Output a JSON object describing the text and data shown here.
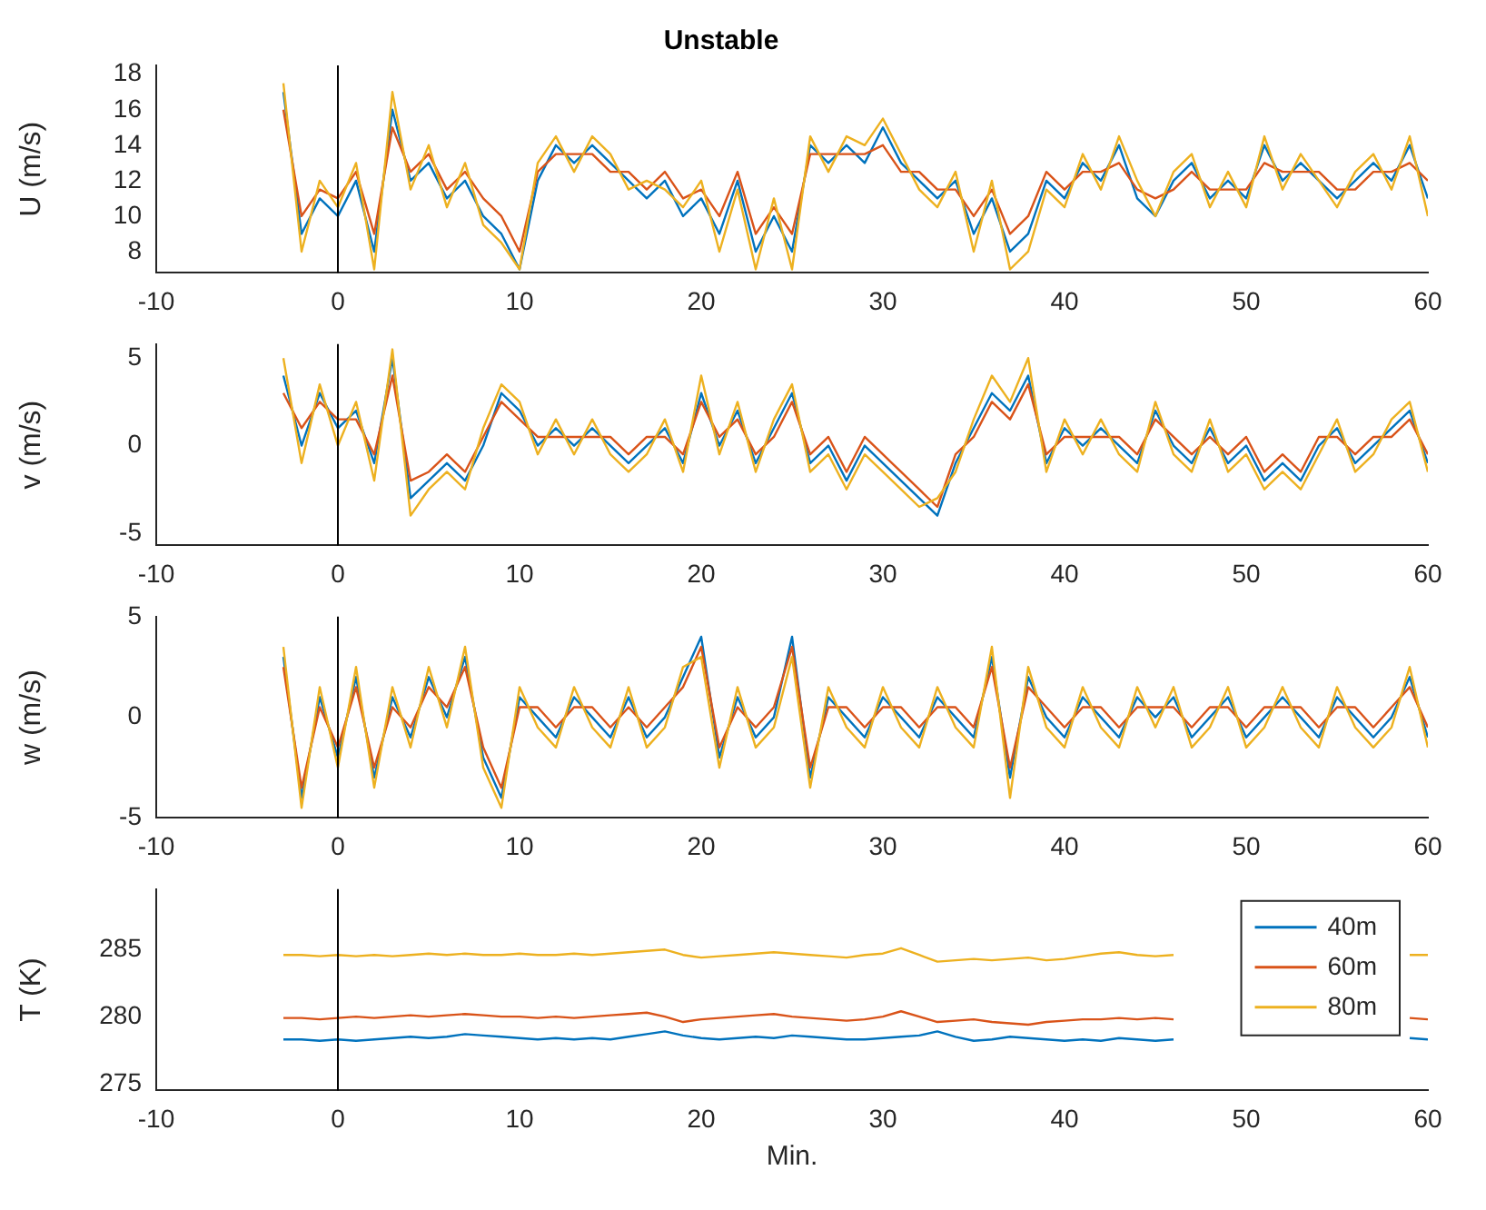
{
  "chart_data": [
    {
      "type": "line",
      "title": "Unstable",
      "ylabel": "U (m/s)",
      "xlim": [
        -10,
        60
      ],
      "xticks": [
        -10,
        0,
        10,
        20,
        30,
        40,
        50,
        60
      ],
      "ylim": [
        6.8,
        18.5
      ],
      "yticks": [
        8,
        10,
        12,
        14,
        16,
        18
      ],
      "grid": false,
      "legend": false,
      "ref_lines": [
        {
          "axis": "x",
          "value": 0,
          "color": "#000000"
        }
      ],
      "x": [
        -3,
        -2,
        -1,
        0,
        1,
        2,
        3,
        4,
        5,
        6,
        7,
        8,
        9,
        10,
        11,
        12,
        13,
        14,
        15,
        16,
        17,
        18,
        19,
        20,
        21,
        22,
        23,
        24,
        25,
        26,
        27,
        28,
        29,
        30,
        31,
        32,
        33,
        34,
        35,
        36,
        37,
        38,
        39,
        40,
        41,
        42,
        43,
        44,
        45,
        46,
        47,
        48,
        49,
        50,
        51,
        52,
        53,
        54,
        55,
        56,
        57,
        58,
        59,
        60
      ],
      "series": [
        {
          "color": "#0072bd",
          "values": [
            17,
            9,
            11,
            10,
            12,
            8,
            16,
            12,
            13,
            11,
            12,
            10,
            9,
            7,
            12,
            14,
            13,
            14,
            13,
            12,
            11,
            12,
            10,
            11,
            9,
            12,
            8,
            10,
            8,
            14,
            13,
            14,
            13,
            15,
            13,
            12,
            11,
            12,
            9,
            11,
            8,
            9,
            12,
            11,
            13,
            12,
            14,
            11,
            10,
            12,
            13,
            11,
            12,
            11,
            14,
            12,
            13,
            12,
            11,
            12,
            13,
            12,
            14,
            11
          ]
        },
        {
          "color": "#d95319",
          "values": [
            16,
            10,
            11.5,
            11,
            12.5,
            9,
            15,
            12.5,
            13.5,
            11.5,
            12.5,
            11,
            10,
            8,
            12.5,
            13.5,
            13.5,
            13.5,
            12.5,
            12.5,
            11.5,
            12.5,
            11,
            11.5,
            10,
            12.5,
            9,
            10.5,
            9,
            13.5,
            13.5,
            13.5,
            13.5,
            14,
            12.5,
            12.5,
            11.5,
            11.5,
            10,
            11.5,
            9,
            10,
            12.5,
            11.5,
            12.5,
            12.5,
            13,
            11.5,
            11,
            11.5,
            12.5,
            11.5,
            11.5,
            11.5,
            13,
            12.5,
            12.5,
            12.5,
            11.5,
            11.5,
            12.5,
            12.5,
            13,
            12
          ]
        },
        {
          "color": "#edb120",
          "values": [
            17.5,
            8,
            12,
            10.5,
            13,
            7,
            17,
            11.5,
            14,
            10.5,
            13,
            9.5,
            8.5,
            7,
            13,
            14.5,
            12.5,
            14.5,
            13.5,
            11.5,
            12,
            11.5,
            10.5,
            12,
            8,
            11.5,
            7,
            11,
            7,
            14.5,
            12.5,
            14.5,
            14,
            15.5,
            13.5,
            11.5,
            10.5,
            12.5,
            8,
            12,
            7,
            8,
            11.5,
            10.5,
            13.5,
            11.5,
            14.5,
            12,
            10,
            12.5,
            13.5,
            10.5,
            12.5,
            10.5,
            14.5,
            11.5,
            13.5,
            12,
            10.5,
            12.5,
            13.5,
            11.5,
            14.5,
            10
          ]
        }
      ]
    },
    {
      "type": "line",
      "ylabel": "v (m/s)",
      "xlim": [
        -10,
        60
      ],
      "xticks": [
        -10,
        0,
        10,
        20,
        30,
        40,
        50,
        60
      ],
      "ylim": [
        -5.7,
        5.8
      ],
      "yticks": [
        -5,
        0,
        5
      ],
      "grid": false,
      "legend": false,
      "ref_lines": [
        {
          "axis": "x",
          "value": 0,
          "color": "#000000"
        }
      ],
      "x": [
        -3,
        -2,
        -1,
        0,
        1,
        2,
        3,
        4,
        5,
        6,
        7,
        8,
        9,
        10,
        11,
        12,
        13,
        14,
        15,
        16,
        17,
        18,
        19,
        20,
        21,
        22,
        23,
        24,
        25,
        26,
        27,
        28,
        29,
        30,
        31,
        32,
        33,
        34,
        35,
        36,
        37,
        38,
        39,
        40,
        41,
        42,
        43,
        44,
        45,
        46,
        47,
        48,
        49,
        50,
        51,
        52,
        53,
        54,
        55,
        56,
        57,
        58,
        59,
        60
      ],
      "series": [
        {
          "color": "#0072bd",
          "values": [
            4,
            0,
            3,
            1,
            2,
            -1,
            5,
            -3,
            -2,
            -1,
            -2,
            0,
            3,
            2,
            0,
            1,
            0,
            1,
            0,
            -1,
            0,
            1,
            -1,
            3,
            0,
            2,
            -1,
            1,
            3,
            -1,
            0,
            -2,
            0,
            -1,
            -2,
            -3,
            -4,
            -1,
            1,
            3,
            2,
            4,
            -1,
            1,
            0,
            1,
            0,
            -1,
            2,
            0,
            -1,
            1,
            -1,
            0,
            -2,
            -1,
            -2,
            0,
            1,
            -1,
            0,
            1,
            2,
            -1
          ]
        },
        {
          "color": "#d95319",
          "values": [
            3,
            1,
            2.5,
            1.5,
            1.5,
            -0.5,
            4,
            -2,
            -1.5,
            -0.5,
            -1.5,
            0.5,
            2.5,
            1.5,
            0.5,
            0.5,
            0.5,
            0.5,
            0.5,
            -0.5,
            0.5,
            0.5,
            -0.5,
            2.5,
            0.5,
            1.5,
            -0.5,
            0.5,
            2.5,
            -0.5,
            0.5,
            -1.5,
            0.5,
            -0.5,
            -1.5,
            -2.5,
            -3.5,
            -0.5,
            0.5,
            2.5,
            1.5,
            3.5,
            -0.5,
            0.5,
            0.5,
            0.5,
            0.5,
            -0.5,
            1.5,
            0.5,
            -0.5,
            0.5,
            -0.5,
            0.5,
            -1.5,
            -0.5,
            -1.5,
            0.5,
            0.5,
            -0.5,
            0.5,
            0.5,
            1.5,
            -0.5
          ]
        },
        {
          "color": "#edb120",
          "values": [
            5,
            -1,
            3.5,
            0,
            2.5,
            -2,
            5.5,
            -4,
            -2.5,
            -1.5,
            -2.5,
            1,
            3.5,
            2.5,
            -0.5,
            1.5,
            -0.5,
            1.5,
            -0.5,
            -1.5,
            -0.5,
            1.5,
            -1.5,
            4,
            -0.5,
            2.5,
            -1.5,
            1.5,
            3.5,
            -1.5,
            -0.5,
            -2.5,
            -0.5,
            -1.5,
            -2.5,
            -3.5,
            -3,
            -1.5,
            1.5,
            4,
            2.5,
            5,
            -1.5,
            1.5,
            -0.5,
            1.5,
            -0.5,
            -1.5,
            2.5,
            -0.5,
            -1.5,
            1.5,
            -1.5,
            -0.5,
            -2.5,
            -1.5,
            -2.5,
            -0.5,
            1.5,
            -1.5,
            -0.5,
            1.5,
            2.5,
            -1.5
          ]
        }
      ]
    },
    {
      "type": "line",
      "ylabel": "w (m/s)",
      "xlim": [
        -10,
        60
      ],
      "xticks": [
        -10,
        0,
        10,
        20,
        30,
        40,
        50,
        60
      ],
      "ylim": [
        -5,
        5
      ],
      "yticks": [
        -5,
        0,
        5
      ],
      "grid": false,
      "legend": false,
      "ref_lines": [
        {
          "axis": "x",
          "value": 0,
          "color": "#000000"
        }
      ],
      "x": [
        -3,
        -2,
        -1,
        0,
        1,
        2,
        3,
        4,
        5,
        6,
        7,
        8,
        9,
        10,
        11,
        12,
        13,
        14,
        15,
        16,
        17,
        18,
        19,
        20,
        21,
        22,
        23,
        24,
        25,
        26,
        27,
        28,
        29,
        30,
        31,
        32,
        33,
        34,
        35,
        36,
        37,
        38,
        39,
        40,
        41,
        42,
        43,
        44,
        45,
        46,
        47,
        48,
        49,
        50,
        51,
        52,
        53,
        54,
        55,
        56,
        57,
        58,
        59,
        60
      ],
      "series": [
        {
          "color": "#0072bd",
          "values": [
            3,
            -4,
            1,
            -2,
            2,
            -3,
            1,
            -1,
            2,
            0,
            3,
            -2,
            -4,
            1,
            0,
            -1,
            1,
            0,
            -1,
            1,
            -1,
            0,
            2,
            4,
            -2,
            1,
            -1,
            0,
            4,
            -3,
            1,
            0,
            -1,
            1,
            0,
            -1,
            1,
            0,
            -1,
            3,
            -3,
            2,
            0,
            -1,
            1,
            0,
            -1,
            1,
            0,
            1,
            -1,
            0,
            1,
            -1,
            0,
            1,
            0,
            -1,
            1,
            0,
            -1,
            0,
            2,
            -1
          ]
        },
        {
          "color": "#d95319",
          "values": [
            2.5,
            -3.5,
            0.5,
            -1.5,
            1.5,
            -2.5,
            0.5,
            -0.5,
            1.5,
            0.5,
            2.5,
            -1.5,
            -3.5,
            0.5,
            0.5,
            -0.5,
            0.5,
            0.5,
            -0.5,
            0.5,
            -0.5,
            0.5,
            1.5,
            3.5,
            -1.5,
            0.5,
            -0.5,
            0.5,
            3.5,
            -2.5,
            0.5,
            0.5,
            -0.5,
            0.5,
            0.5,
            -0.5,
            0.5,
            0.5,
            -0.5,
            2.5,
            -2.5,
            1.5,
            0.5,
            -0.5,
            0.5,
            0.5,
            -0.5,
            0.5,
            0.5,
            0.5,
            -0.5,
            0.5,
            0.5,
            -0.5,
            0.5,
            0.5,
            0.5,
            -0.5,
            0.5,
            0.5,
            -0.5,
            0.5,
            1.5,
            -0.5
          ]
        },
        {
          "color": "#edb120",
          "values": [
            3.5,
            -4.5,
            1.5,
            -2.5,
            2.5,
            -3.5,
            1.5,
            -1.5,
            2.5,
            -0.5,
            3.5,
            -2.5,
            -4.5,
            1.5,
            -0.5,
            -1.5,
            1.5,
            -0.5,
            -1.5,
            1.5,
            -1.5,
            -0.5,
            2.5,
            3,
            -2.5,
            1.5,
            -1.5,
            -0.5,
            3,
            -3.5,
            1.5,
            -0.5,
            -1.5,
            1.5,
            -0.5,
            -1.5,
            1.5,
            -0.5,
            -1.5,
            3.5,
            -4,
            2.5,
            -0.5,
            -1.5,
            1.5,
            -0.5,
            -1.5,
            1.5,
            -0.5,
            1.5,
            -1.5,
            -0.5,
            1.5,
            -1.5,
            -0.5,
            1.5,
            -0.5,
            -1.5,
            1.5,
            -0.5,
            -1.5,
            -0.5,
            2.5,
            -1.5
          ]
        }
      ]
    },
    {
      "type": "line",
      "ylabel": "T (K)",
      "xlabel": "Min.",
      "xlim": [
        -10,
        60
      ],
      "xticks": [
        -10,
        0,
        10,
        20,
        30,
        40,
        50,
        60
      ],
      "ylim": [
        274.5,
        289.5
      ],
      "yticks": [
        275,
        280,
        285
      ],
      "grid": false,
      "legend": "top right",
      "ref_lines": [
        {
          "axis": "x",
          "value": 0,
          "color": "#000000"
        }
      ],
      "x": [
        -3,
        -2,
        -1,
        0,
        1,
        2,
        3,
        4,
        5,
        6,
        7,
        8,
        9,
        10,
        11,
        12,
        13,
        14,
        15,
        16,
        17,
        18,
        19,
        20,
        21,
        22,
        23,
        24,
        25,
        26,
        27,
        28,
        29,
        30,
        31,
        32,
        33,
        34,
        35,
        36,
        37,
        38,
        39,
        40,
        41,
        42,
        43,
        44,
        45,
        46,
        47,
        48,
        49,
        50,
        51,
        52,
        53,
        54,
        55,
        56,
        57,
        58,
        59,
        60
      ],
      "series": [
        {
          "name": "40m",
          "color": "#0072bd",
          "values": [
            278.3,
            278.3,
            278.2,
            278.3,
            278.2,
            278.3,
            278.4,
            278.5,
            278.4,
            278.5,
            278.7,
            278.6,
            278.5,
            278.4,
            278.3,
            278.4,
            278.3,
            278.4,
            278.3,
            278.5,
            278.7,
            278.9,
            278.6,
            278.4,
            278.3,
            278.4,
            278.5,
            278.4,
            278.6,
            278.5,
            278.4,
            278.3,
            278.3,
            278.4,
            278.5,
            278.6,
            278.9,
            278.5,
            278.2,
            278.3,
            278.5,
            278.4,
            278.3,
            278.2,
            278.3,
            278.2,
            278.4,
            278.3,
            278.2,
            278.3,
            null,
            null,
            null,
            null,
            null,
            null,
            null,
            null,
            null,
            null,
            null,
            null,
            278.4,
            278.3
          ]
        },
        {
          "name": "60m",
          "color": "#d95319",
          "values": [
            279.9,
            279.9,
            279.8,
            279.9,
            280.0,
            279.9,
            280.0,
            280.1,
            280.0,
            280.1,
            280.2,
            280.1,
            280.0,
            280.0,
            279.9,
            280.0,
            279.9,
            280.0,
            280.1,
            280.2,
            280.3,
            280.0,
            279.6,
            279.8,
            279.9,
            280.0,
            280.1,
            280.2,
            280.0,
            279.9,
            279.8,
            279.7,
            279.8,
            280.0,
            280.4,
            280.0,
            279.6,
            279.7,
            279.8,
            279.6,
            279.5,
            279.4,
            279.6,
            279.7,
            279.8,
            279.8,
            279.9,
            279.8,
            279.9,
            279.8,
            null,
            null,
            null,
            null,
            null,
            null,
            null,
            null,
            null,
            null,
            null,
            null,
            279.9,
            279.8
          ]
        },
        {
          "name": "80m",
          "color": "#edb120",
          "values": [
            284.6,
            284.6,
            284.5,
            284.6,
            284.5,
            284.6,
            284.5,
            284.6,
            284.7,
            284.6,
            284.7,
            284.6,
            284.6,
            284.7,
            284.6,
            284.6,
            284.7,
            284.6,
            284.7,
            284.8,
            284.9,
            285.0,
            284.6,
            284.4,
            284.5,
            284.6,
            284.7,
            284.8,
            284.7,
            284.6,
            284.5,
            284.4,
            284.6,
            284.7,
            285.1,
            284.6,
            284.1,
            284.2,
            284.3,
            284.2,
            284.3,
            284.4,
            284.2,
            284.3,
            284.5,
            284.7,
            284.8,
            284.6,
            284.5,
            284.6,
            null,
            null,
            null,
            null,
            null,
            null,
            null,
            null,
            null,
            null,
            null,
            null,
            284.6,
            284.6
          ]
        }
      ]
    }
  ]
}
